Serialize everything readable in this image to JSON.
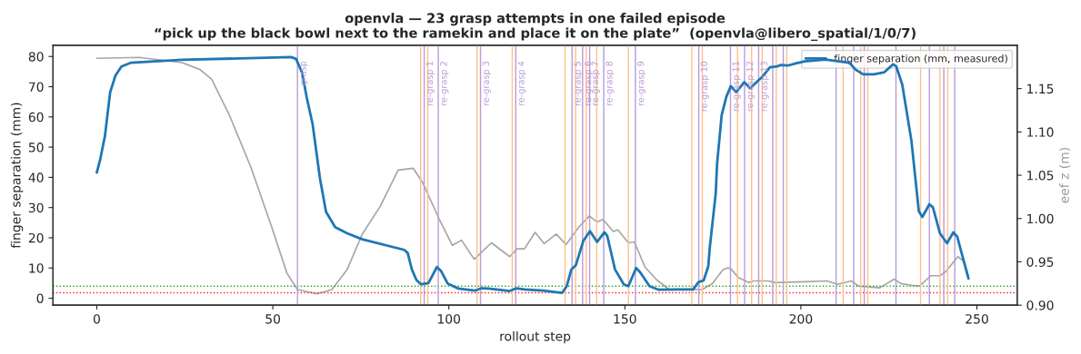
{
  "chart_data": {
    "type": "line",
    "title": "openvla — 23 grasp attempts in one failed episode",
    "subtitle": "“pick up the black bowl next to the ramekin and place it on the plate”  (openvla@libero_spatial/1/0/7)",
    "xlabel": "rollout step",
    "ylabel": "finger separation (mm)",
    "y2label": "eef z (m)",
    "xlim": [
      -12.45,
      261.45
    ],
    "xticks": [
      0,
      50,
      100,
      150,
      200,
      250
    ],
    "ylim": [
      -2.3,
      83.7
    ],
    "yticks": [
      0,
      10,
      20,
      30,
      40,
      50,
      60,
      70,
      80
    ],
    "y2lim": [
      0.9,
      1.2
    ],
    "y2ticks": [
      {
        "value": 0.9,
        "label": "0.90"
      },
      {
        "value": 0.95,
        "label": "0.95"
      },
      {
        "value": 1.0,
        "label": "1.00"
      },
      {
        "value": 1.05,
        "label": "1.05"
      },
      {
        "value": 1.1,
        "label": "1.10"
      },
      {
        "value": 1.15,
        "label": "1.15"
      }
    ],
    "legend": "top right",
    "grid": false,
    "marker": "none",
    "line_style": "solid",
    "series": [
      {
        "name": "finger separation (mm, measured)",
        "color": "#1f77b4",
        "x": [
          0,
          1,
          2.3,
          3.8,
          5.3,
          7,
          9.6,
          24.2,
          55.2,
          56.6,
          58.3,
          59.6,
          61.3,
          63.4,
          65.1,
          67.7,
          71.1,
          75.4,
          87.3,
          88.3,
          89.5,
          90.8,
          92.1,
          94.2,
          96.6,
          97.8,
          99.7,
          102.7,
          107.4,
          109.3,
          111.3,
          117.3,
          119.2,
          121.5,
          126.7,
          132.2,
          133.5,
          134.8,
          136.1,
          138.2,
          140.1,
          142.1,
          144.2,
          145,
          147.2,
          149.7,
          151,
          153.2,
          154.4,
          157,
          159.6,
          165.1,
          169.4,
          170.9,
          172.4,
          173.7,
          174.1,
          175.8,
          176.2,
          177.5,
          178.8,
          180.1,
          181.6,
          183.9,
          185.6,
          188,
          189,
          191.2,
          193.3,
          194.2,
          196.3,
          198.5,
          201,
          207,
          213.8,
          215.6,
          217.7,
          220.7,
          223.7,
          226.2,
          227.1,
          228.8,
          231.4,
          233.5,
          234.5,
          236.5,
          237.5,
          239.5,
          241.5,
          243.3,
          244.4,
          247.6
        ],
        "values": [
          41.6,
          46.1,
          53.6,
          68.2,
          73.7,
          76.7,
          77.9,
          78.9,
          79.8,
          79.2,
          74.7,
          66.6,
          57.6,
          39.6,
          28.6,
          23.5,
          21.5,
          19.5,
          16.0,
          15.0,
          9.5,
          6.0,
          4.6,
          5.0,
          10.3,
          9.0,
          4.8,
          3.2,
          2.5,
          3.3,
          3.2,
          2.4,
          3.3,
          2.9,
          2.5,
          1.8,
          4.0,
          9.5,
          11.0,
          19.0,
          22.2,
          18.6,
          21.8,
          20.6,
          9.5,
          4.6,
          4.0,
          10.0,
          8.5,
          4.0,
          2.8,
          2.9,
          2.9,
          5.3,
          5.9,
          10.6,
          16.5,
          34.6,
          44.6,
          60.6,
          66.6,
          70.2,
          68.2,
          71.5,
          69.5,
          72.2,
          73.2,
          76.4,
          76.7,
          77.2,
          77.0,
          77.7,
          78.4,
          79.0,
          77.9,
          75.6,
          74.1,
          74.1,
          74.8,
          77.4,
          76.7,
          70.7,
          52.1,
          28.8,
          26.9,
          31.1,
          30.1,
          21.5,
          18.2,
          21.8,
          20.4,
          6.5
        ]
      },
      {
        "axis": "y2",
        "color": "#a6a6a6",
        "x": [
          0,
          12.1,
          24.2,
          29.3,
          32.6,
          37.7,
          43.7,
          49.7,
          54,
          57,
          62.6,
          66.8,
          71.1,
          75.4,
          80.5,
          85.6,
          89.9,
          92.5,
          97.2,
          101,
          103.6,
          107.2,
          112.1,
          117.3,
          119.4,
          121.5,
          124.5,
          127.1,
          130.5,
          133.3,
          136.9,
          139.9,
          142.1,
          143.8,
          146.7,
          148,
          151,
          152.7,
          155.7,
          159.1,
          162.6,
          169.4,
          172,
          174.9,
          177.9,
          179.2,
          180.1,
          182.2,
          185.2,
          186.5,
          190.8,
          192.5,
          201,
          207.4,
          210.4,
          214.3,
          216.4,
          222.4,
          226.5,
          228.4,
          231.4,
          233.7,
          236.9,
          239.5,
          241.2,
          244.6,
          246.4,
          247.6
        ],
        "values": [
          1.185,
          1.186,
          1.18,
          1.172,
          1.161,
          1.119,
          1.06,
          0.99,
          0.937,
          0.918,
          0.913,
          0.918,
          0.941,
          0.982,
          1.014,
          1.056,
          1.058,
          1.042,
          1.0,
          0.969,
          0.975,
          0.953,
          0.972,
          0.956,
          0.965,
          0.965,
          0.984,
          0.971,
          0.982,
          0.97,
          0.99,
          1.003,
          0.996,
          0.999,
          0.985,
          0.987,
          0.972,
          0.973,
          0.944,
          0.929,
          0.918,
          0.918,
          0.918,
          0.925,
          0.941,
          0.943,
          0.942,
          0.932,
          0.926,
          0.928,
          0.928,
          0.926,
          0.927,
          0.928,
          0.924,
          0.928,
          0.922,
          0.92,
          0.93,
          0.925,
          0.923,
          0.922,
          0.934,
          0.934,
          0.939,
          0.956,
          0.95,
          0.934
        ]
      }
    ],
    "ref_lines": [
      {
        "axis": "y",
        "value": 4.0,
        "color": "#2ca02c",
        "line_style": "dotted"
      },
      {
        "axis": "y",
        "value": 1.8,
        "color": "#ff2020",
        "line_style": "dotted"
      },
      {
        "axis": "x",
        "value": 57,
        "label": "grasp",
        "color": "#b99ad8"
      },
      {
        "axis": "x",
        "value": 92,
        "color": "#ffc08a"
      },
      {
        "axis": "x",
        "value": 93,
        "label": "re-grasp 1",
        "color": "#b99ad8"
      },
      {
        "axis": "x",
        "value": 94,
        "color": "#ffc08a"
      },
      {
        "axis": "x",
        "value": 97,
        "label": "re-grasp 2",
        "color": "#b99ad8"
      },
      {
        "axis": "x",
        "value": 108,
        "color": "#ffc08a"
      },
      {
        "axis": "x",
        "value": 109,
        "label": "re-grasp 3",
        "color": "#b99ad8"
      },
      {
        "axis": "x",
        "value": 118,
        "color": "#ffc08a"
      },
      {
        "axis": "x",
        "value": 119,
        "label": "re-grasp 4",
        "color": "#b99ad8"
      },
      {
        "axis": "x",
        "value": 133,
        "color": "#ffc08a"
      },
      {
        "axis": "x",
        "value": 135,
        "label": "re-grasp 5",
        "color": "#b99ad8"
      },
      {
        "axis": "x",
        "value": 136,
        "color": "#ffc08a"
      },
      {
        "axis": "x",
        "value": 138,
        "label": "re-grasp 6",
        "color": "#b99ad8"
      },
      {
        "axis": "x",
        "value": 139,
        "color": "#ffc08a"
      },
      {
        "axis": "x",
        "value": 140,
        "label": "re-grasp 7",
        "color": "#b99ad8"
      },
      {
        "axis": "x",
        "value": 142,
        "color": "#ffc08a"
      },
      {
        "axis": "x",
        "value": 144,
        "label": "re-grasp 8",
        "color": "#b99ad8"
      },
      {
        "axis": "x",
        "value": 151,
        "color": "#ffc08a"
      },
      {
        "axis": "x",
        "value": 153,
        "label": "re-grasp 9",
        "color": "#b99ad8"
      },
      {
        "axis": "x",
        "value": 169,
        "color": "#ffc08a"
      },
      {
        "axis": "x",
        "value": 171,
        "label": "re-grasp 10",
        "color": "#b99ad8"
      },
      {
        "axis": "x",
        "value": 172,
        "color": "#ffc08a"
      },
      {
        "axis": "x",
        "value": 180,
        "label": "re-grasp 11",
        "color": "#b99ad8"
      },
      {
        "axis": "x",
        "value": 182,
        "color": "#ffc08a"
      },
      {
        "axis": "x",
        "value": 184,
        "label": "re-grasp 12",
        "color": "#b99ad8"
      },
      {
        "axis": "x",
        "value": 186,
        "color": "#ffc08a"
      },
      {
        "axis": "x",
        "value": 188,
        "label": "re-grasp 13",
        "color": "#b99ad8"
      },
      {
        "axis": "x",
        "value": 189,
        "color": "#ffc08a"
      },
      {
        "axis": "x",
        "value": 192,
        "color": "#b99ad8"
      },
      {
        "axis": "x",
        "value": 193,
        "color": "#ffc08a"
      },
      {
        "axis": "x",
        "value": 195,
        "color": "#b99ad8"
      },
      {
        "axis": "x",
        "value": 196,
        "color": "#ffc08a"
      },
      {
        "axis": "x",
        "value": 210,
        "color": "#b99ad8"
      },
      {
        "axis": "x",
        "value": 212,
        "color": "#ffc08a"
      },
      {
        "axis": "x",
        "value": 215,
        "color": "#b99ad8"
      },
      {
        "axis": "x",
        "value": 217,
        "color": "#ffc08a"
      },
      {
        "axis": "x",
        "value": 218,
        "color": "#b99ad8"
      },
      {
        "axis": "x",
        "value": 219,
        "color": "#ffc08a"
      },
      {
        "axis": "x",
        "value": 227,
        "color": "#b99ad8"
      },
      {
        "axis": "x",
        "value": 234,
        "color": "#ffc08a"
      },
      {
        "axis": "x",
        "value": 236.5,
        "color": "#b99ad8"
      },
      {
        "axis": "x",
        "value": 239.5,
        "color": "#ffc08a"
      },
      {
        "axis": "x",
        "value": 240.6,
        "color": "#b99ad8"
      },
      {
        "axis": "x",
        "value": 241.7,
        "color": "#ffc08a"
      },
      {
        "axis": "x",
        "value": 243.7,
        "color": "#b99ad8"
      }
    ]
  }
}
